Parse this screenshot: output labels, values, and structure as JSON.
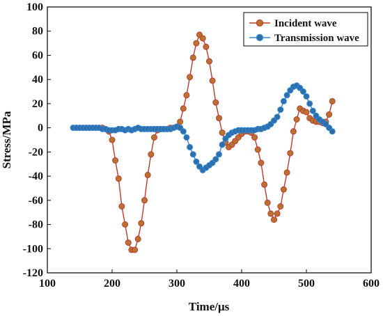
{
  "chart_data": {
    "type": "line",
    "xlabel": "Time/μs",
    "ylabel": "Stress/MPa",
    "xlim": [
      100,
      600
    ],
    "ylim": [
      -120,
      100
    ],
    "x_ticks": [
      100,
      200,
      300,
      400,
      500,
      600
    ],
    "y_ticks": [
      -120,
      -100,
      -80,
      -60,
      -40,
      -20,
      0,
      20,
      40,
      60,
      80,
      100
    ],
    "grid": false,
    "legend_position": "top-right",
    "series": [
      {
        "name": "Incident wave",
        "color": "#c0392b",
        "marker_color": "#b87333",
        "x": [
          140,
          145,
          150,
          155,
          160,
          165,
          170,
          175,
          180,
          185,
          190,
          195,
          200,
          205,
          210,
          215,
          220,
          225,
          230,
          235,
          240,
          245,
          250,
          255,
          260,
          265,
          270,
          275,
          280,
          285,
          290,
          295,
          300,
          305,
          310,
          315,
          320,
          325,
          330,
          335,
          340,
          345,
          350,
          355,
          360,
          365,
          370,
          375,
          380,
          385,
          390,
          395,
          400,
          405,
          410,
          415,
          420,
          425,
          430,
          435,
          440,
          445,
          450,
          455,
          460,
          465,
          470,
          475,
          480,
          485,
          490,
          495,
          500,
          505,
          510,
          515,
          520,
          525,
          530,
          535,
          540
        ],
        "y": [
          0,
          0,
          0,
          0,
          0,
          0,
          0,
          0,
          0,
          0,
          -1,
          -3,
          -10,
          -27,
          -42,
          -65,
          -80,
          -95,
          -101,
          -101,
          -92,
          -79,
          -60,
          -39,
          -22,
          -8,
          -2,
          -1,
          -1,
          -1,
          0,
          0,
          1,
          5,
          16,
          27,
          42,
          58,
          70,
          77,
          74,
          67,
          55,
          39,
          21,
          8,
          -4,
          -12,
          -16,
          -14,
          -11,
          -8,
          -5,
          -3,
          -3,
          -4,
          -8,
          -18,
          -29,
          -47,
          -62,
          -71,
          -76,
          -71,
          -65,
          -51,
          -37,
          -21,
          -3,
          7,
          16,
          14,
          13,
          8,
          6,
          5,
          5,
          4,
          5,
          11,
          22
        ]
      },
      {
        "name": "Transmission wave",
        "color": "#2e86de",
        "marker_color": "#2f6fa8",
        "x": [
          140,
          145,
          150,
          155,
          160,
          165,
          170,
          175,
          180,
          185,
          190,
          195,
          200,
          205,
          210,
          215,
          220,
          225,
          230,
          235,
          240,
          245,
          250,
          255,
          260,
          265,
          270,
          275,
          280,
          285,
          290,
          295,
          300,
          305,
          310,
          315,
          320,
          325,
          330,
          335,
          340,
          345,
          350,
          355,
          360,
          365,
          370,
          375,
          380,
          385,
          390,
          395,
          400,
          405,
          410,
          415,
          420,
          425,
          430,
          435,
          440,
          445,
          450,
          455,
          460,
          465,
          470,
          475,
          480,
          485,
          490,
          495,
          500,
          505,
          510,
          515,
          520,
          525,
          530,
          535,
          540
        ],
        "y": [
          0,
          0,
          0,
          0,
          0,
          0,
          0,
          0,
          0,
          -1,
          -1,
          -2,
          -2,
          -2,
          -1,
          -1,
          -2,
          -1,
          -2,
          -1,
          0,
          -1,
          -1,
          -1,
          -1,
          -1,
          -1,
          -1,
          -1,
          -1,
          -1,
          0,
          1,
          0,
          -3,
          -8,
          -16,
          -22,
          -28,
          -32,
          -35,
          -33,
          -31,
          -29,
          -26,
          -22,
          -14,
          -9,
          -6,
          -4,
          -3,
          -2,
          -2,
          -2,
          -2,
          -2,
          -2,
          -1,
          -1,
          0,
          1,
          3,
          6,
          9,
          15,
          22,
          27,
          31,
          34,
          35,
          33,
          30,
          26,
          20,
          14,
          10,
          7,
          5,
          3,
          0,
          -3
        ]
      }
    ]
  }
}
